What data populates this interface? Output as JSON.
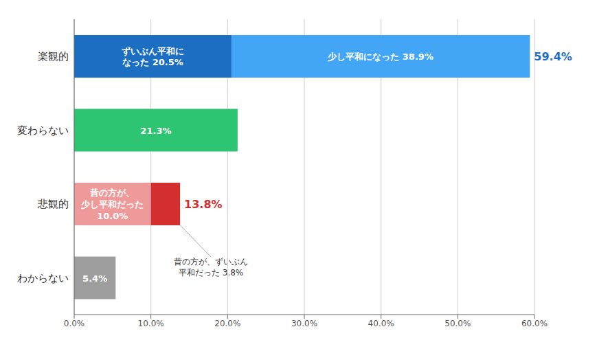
{
  "chart_data": {
    "type": "bar",
    "orientation": "horizontal",
    "stacked": true,
    "grid": true,
    "categories": [
      "楽観的",
      "変わらない",
      "悲観的",
      "わからない"
    ],
    "series": [
      {
        "values": [
          20.5,
          21.3,
          10.0,
          5.4
        ],
        "colors": [
          "#1B6EC2",
          "#2DC572",
          "#EF9A9A",
          "#9E9E9E"
        ],
        "value_labels": [
          "ずいぶん平和に\nなった 20.5%",
          "21.3%",
          "昔の方が、\n少し平和だった\n10.0%",
          "5.4%"
        ]
      },
      {
        "values": [
          38.9,
          null,
          3.8,
          null
        ],
        "colors": [
          "#42A5F5",
          null,
          "#D32F2F",
          null
        ],
        "value_labels": [
          "少し平和になった 38.9%",
          null,
          null,
          null
        ]
      }
    ],
    "totals": {
      "values": [
        59.4,
        null,
        13.8,
        null
      ],
      "value_labels": [
        "59.4%",
        null,
        "13.8%",
        null
      ],
      "colors": [
        "#1B6EC2",
        null,
        "#D32F2F",
        null
      ]
    },
    "annotations": [
      {
        "text": "昔の方が、ずいぶん\n平和だった 3.8%",
        "category": "悲観的",
        "x": 13.8
      }
    ],
    "xlim": [
      0,
      60
    ],
    "xticks": [
      {
        "value": 0,
        "label": "0.0%"
      },
      {
        "value": 10,
        "label": "10.0%"
      },
      {
        "value": 20,
        "label": "20.0%"
      },
      {
        "value": 30,
        "label": "30.0%"
      },
      {
        "value": 40,
        "label": "40.0%"
      },
      {
        "value": 50,
        "label": "50.0%"
      },
      {
        "value": 60,
        "label": "60.0%"
      }
    ]
  }
}
